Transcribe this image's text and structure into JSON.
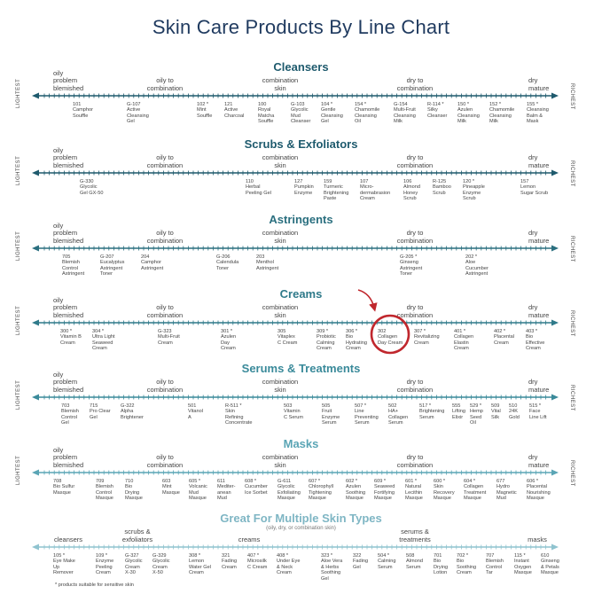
{
  "title": "Skin Care Products By Line Chart",
  "footnote": "* products suitable for sensitive skin",
  "colors": {
    "title": "#1f3a5f",
    "highlight": "#c0272d"
  },
  "sections": [
    {
      "key": "cleansers",
      "title": "Cleansers",
      "color": "#1e5a6d",
      "skin_labels": {
        "left": "oily\nproblem\nblemished",
        "oily_combo": "oily to\ncombination",
        "combination": "combination\nskin",
        "dry_combo": "dry to\ncombination",
        "right": "dry\nmature"
      },
      "end_left": "LIGHTEST",
      "end_right": "RICHEST",
      "products": [
        {
          "name": "101\nCamphor\nSouffle"
        },
        {
          "name": "G-107\nActive\nCleansing\nGel"
        },
        {
          "name": "102 *\nMint\nSouffle"
        },
        {
          "name": "121\nActive\nCharcoal"
        },
        {
          "name": "100\nRoyal\nMatcha\nSouffle"
        },
        {
          "name": "G-103\nGlycolic\nMud\nCleanser"
        },
        {
          "name": "104 *\nGentle\nCleansing\nGel"
        },
        {
          "name": "154 *\nChamomile\nCleansing\nOil"
        },
        {
          "name": "G-154\nMulti-Fruit\nCleansing\nMilk"
        },
        {
          "name": "R-114 *\nSilky\nCleanser"
        },
        {
          "name": "150 *\nAzulen\nCleansing\nMilk"
        },
        {
          "name": "152 *\nChamomile\nCleansing\nMilk"
        },
        {
          "name": "155 *\nCleansing\nBalm &\nMask"
        }
      ]
    },
    {
      "key": "scrubs",
      "title": "Scrubs & Exfoliators",
      "color": "#1e5a6d",
      "skin_labels": {
        "left": "oily\nproblem\nblemished",
        "oily_combo": "oily to\ncombination",
        "combination": "combination\nskin",
        "dry_combo": "dry to\ncombination",
        "right": "dry\nmature"
      },
      "end_left": "LIGHTEST",
      "end_right": "RICHEST",
      "products": [
        {
          "name": "G-330\nGlycolic\nGel GX-50"
        },
        {
          "name": "110\nHerbal\nPeeling Gel"
        },
        {
          "name": "127\nPumpkin\nEnzyme"
        },
        {
          "name": "159\nTurmeric\nBrightening\nPaste"
        },
        {
          "name": "107\nMicro-\ndermabrasion\nCream"
        },
        {
          "name": "106\nAlmond\nHoney\nScrub"
        },
        {
          "name": "R-125\nBamboo\nScrub"
        },
        {
          "name": "120 *\nPineapple\nEnzyme\nScrub"
        },
        {
          "name": "157\nLemon\nSugar Scrub"
        }
      ]
    },
    {
      "key": "astringents",
      "title": "Astringents",
      "color": "#2a6f7f",
      "skin_labels": {
        "left": "oily\nproblem\nblemished",
        "oily_combo": "oily to\ncombination",
        "combination": "combination\nskin",
        "dry_combo": "dry to\ncombination",
        "right": "dry\nmature"
      },
      "end_left": "LIGHTEST",
      "end_right": "RICHEST",
      "products": [
        {
          "name": "705\nBlemish\nControl\nAstringent"
        },
        {
          "name": "G-207\nEucalyptus\nAstringent\nToner"
        },
        {
          "name": "204\nCamphor\nAstringent"
        },
        {
          "name": "G-206\nCalendula\nToner"
        },
        {
          "name": "203\nMenthol\nAstringent"
        },
        {
          "name": "G-205 *\nGinseng\nAstringent\nToner"
        },
        {
          "name": "202 *\nAloe\nCucumber\nAstringent"
        }
      ]
    },
    {
      "key": "creams",
      "title": "Creams",
      "color": "#2f7a8a",
      "skin_labels": {
        "left": "oily\nproblem\nblemished",
        "oily_combo": "oily to\ncombination",
        "combination": "combination\nskin",
        "dry_combo": "dry to\ncombination",
        "right": "dry\nmature"
      },
      "end_left": "LIGHTEST",
      "end_right": "RICHEST",
      "products": [
        {
          "name": "300 *\nVitamin B\nCream"
        },
        {
          "name": "304 *\nUltra Light\nSeaweed\nCream"
        },
        {
          "name": "G-323\nMulti-Fruit\nCream"
        },
        {
          "name": "301 *\nAzulen\nDay\nCream"
        },
        {
          "name": "305\nVitaplex\nC Cream"
        },
        {
          "name": "309 *\nProbiotic\nCalming\nCream"
        },
        {
          "name": "306 *\nBio\nHydrating\nCream"
        },
        {
          "name": "302\nCollagen\nDay Cream"
        },
        {
          "name": "307 *\nRevitalizing\nCream"
        },
        {
          "name": "401 *\nCollagen\nElastin\nCream"
        },
        {
          "name": "402 *\nPlacental\nCream"
        },
        {
          "name": "403 *\nBio\nEffective\nCream"
        }
      ]
    },
    {
      "key": "serums",
      "title": "Serums & Treatments",
      "color": "#3a8a9a",
      "skin_labels": {
        "left": "oily\nproblem\nblemished",
        "oily_combo": "oily to\ncombination",
        "combination": "combination\nskin",
        "dry_combo": "dry to\ncombination",
        "right": "dry\nmature"
      },
      "end_left": "LIGHTEST",
      "end_right": "RICHEST",
      "products": [
        {
          "name": "703\nBlemish\nControl\nGel"
        },
        {
          "name": "715\nPro Clear\nGel"
        },
        {
          "name": "G-322\nAlpha\nBrightener"
        },
        {
          "name": "501\nVitanol\nA"
        },
        {
          "name": "R-511 *\nSkin\nRefining\nConcentrate"
        },
        {
          "name": "503\nVitamin\nC Serum"
        },
        {
          "name": "505\nFruit\nEnzyme\nSerum"
        },
        {
          "name": "507 *\nLine\nPreventing\nSerum"
        },
        {
          "name": "502\nHA+\nCollagen\nSerum"
        },
        {
          "name": "517 *\nBrightening\nSerum"
        },
        {
          "name": "555\nLifting\nElixir"
        },
        {
          "name": "529 *\nHemp\nSeed\nOil"
        },
        {
          "name": "509\nVital\nSilk"
        },
        {
          "name": "510\n24K\nGold"
        },
        {
          "name": "515 *\nFace\nLine Lift"
        }
      ]
    },
    {
      "key": "masks",
      "title": "Masks",
      "color": "#5aa5b5",
      "skin_labels": {
        "left": "oily\nproblem\nblemished",
        "oily_combo": "oily to\ncombination",
        "combination": "combination\nskin",
        "dry_combo": "dry to\ncombination",
        "right": "dry\nmature"
      },
      "end_left": "LIGHTEST",
      "end_right": "RICHEST",
      "products": [
        {
          "name": "708\nBio Sulfur\nMasque"
        },
        {
          "name": "709\nBlemish\nControl\nMasque"
        },
        {
          "name": "710\nBio\nDrying\nMasque"
        },
        {
          "name": "603\nMint\nMasque"
        },
        {
          "name": "605 *\nVolcanic\nMud\nMasque"
        },
        {
          "name": "611\nMediter-\nanean\nMud"
        },
        {
          "name": "608 *\nCucumber\nIce Sorbet"
        },
        {
          "name": "G-611\nGlycolic\nExfoliating\nMasque"
        },
        {
          "name": "607 *\nChlorophyll\nTightening\nMasque"
        },
        {
          "name": "602 *\nAzulen\nSoothing\nMasque"
        },
        {
          "name": "609 *\nSeaweed\nFortifying\nMasque"
        },
        {
          "name": "601 *\nNatural\nLecithin\nMasque"
        },
        {
          "name": "600 *\nSkin\nRecovery\nMasque"
        },
        {
          "name": "604 *\nCollagen\nTreatment\nMasque"
        },
        {
          "name": "677\nHydro\nMagnetic\nMud"
        },
        {
          "name": "606 *\nPlacental\nNourishing\nMasque"
        }
      ]
    }
  ],
  "multi": {
    "title": "Great For Multiple Skin Types",
    "subtitle": "(oily, dry, or combination skin)",
    "color": "#8fc3cf",
    "categories": {
      "cleansers": "cleansers",
      "scrubs": "scrubs &\nexfoliators",
      "creams": "creams",
      "serums": "serums &\ntreatments",
      "masks": "masks"
    },
    "products": [
      {
        "name": "105 *\nEye Make\nUp\nRemover"
      },
      {
        "name": "109 *\nEnzyme\nPeeling\nCream"
      },
      {
        "name": "G-327\nGlycolic\nCream\nX-30"
      },
      {
        "name": "G-329\nGlycolic\nCream\nX-50"
      },
      {
        "name": "308 *\nLemon\nWater Gel\nCream"
      },
      {
        "name": "321\nFading\nCream"
      },
      {
        "name": "407 *\nMicrosilk\nC Cream"
      },
      {
        "name": "408 *\nUnder Eye\n& Neck\nCream"
      },
      {
        "name": "323 *\nAloe Vera\n& Herbs\nSoothing\nGel"
      },
      {
        "name": "322\nFading\nGel"
      },
      {
        "name": "504 *\nCalming\nSerum"
      },
      {
        "name": "508\nAlmond\nSerum"
      },
      {
        "name": "701\nBio\nDrying\nLotion"
      },
      {
        "name": "702 *\nBio\nSoothing\nCream"
      },
      {
        "name": "707\nBlemish\nControl\nTar"
      },
      {
        "name": "115 *\nInstant\nOxygen\nMasque"
      },
      {
        "name": "610\nGinseng\n& Petals\nMasque"
      }
    ]
  }
}
